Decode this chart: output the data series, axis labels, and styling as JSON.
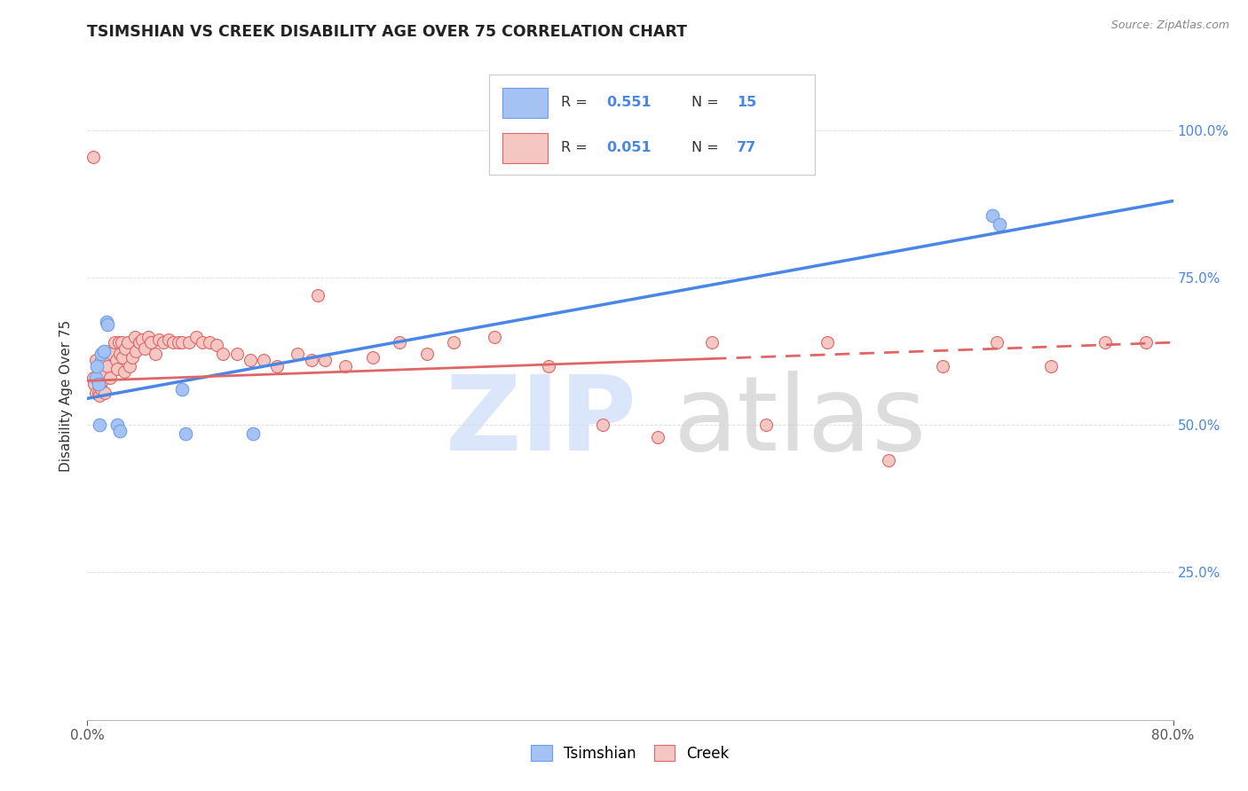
{
  "title": "TSIMSHIAN VS CREEK DISABILITY AGE OVER 75 CORRELATION CHART",
  "source": "Source: ZipAtlas.com",
  "ylabel": "Disability Age Over 75",
  "xmin": 0.0,
  "xmax": 0.8,
  "ymin": 0.0,
  "ymax": 1.1,
  "yticks": [
    0.25,
    0.5,
    0.75,
    1.0
  ],
  "ytick_labels_right": [
    "25.0%",
    "50.0%",
    "75.0%",
    "100.0%"
  ],
  "legend_label_blue": "Tsimshian",
  "legend_label_pink": "Creek",
  "blue_fill": "#a4c2f4",
  "pink_fill": "#f4c7c3",
  "blue_edge": "#6d9eeb",
  "pink_edge": "#e06666",
  "blue_line_color": "#4a86e8",
  "pink_line_color": "#e06666",
  "right_axis_color": "#4a86e8",
  "background": "#ffffff",
  "grid_color": "#e0e0e0",
  "blue_scatter_x": [
    0.006,
    0.007,
    0.008,
    0.009,
    0.01,
    0.012,
    0.014,
    0.015,
    0.022,
    0.024,
    0.07,
    0.072,
    0.122,
    0.667,
    0.672
  ],
  "blue_scatter_y": [
    0.58,
    0.6,
    0.57,
    0.5,
    0.62,
    0.625,
    0.675,
    0.67,
    0.5,
    0.49,
    0.56,
    0.485,
    0.485,
    0.855,
    0.84
  ],
  "pink_scatter_x": [
    0.004,
    0.005,
    0.006,
    0.006,
    0.007,
    0.008,
    0.009,
    0.009,
    0.01,
    0.01,
    0.011,
    0.012,
    0.013,
    0.013,
    0.015,
    0.016,
    0.017,
    0.018,
    0.02,
    0.021,
    0.022,
    0.023,
    0.024,
    0.025,
    0.026,
    0.027,
    0.028,
    0.03,
    0.031,
    0.033,
    0.035,
    0.036,
    0.038,
    0.04,
    0.042,
    0.045,
    0.047,
    0.05,
    0.053,
    0.056,
    0.06,
    0.063,
    0.067,
    0.07,
    0.075,
    0.08,
    0.085,
    0.09,
    0.095,
    0.1,
    0.11,
    0.12,
    0.13,
    0.14,
    0.155,
    0.165,
    0.175,
    0.19,
    0.21,
    0.23,
    0.25,
    0.27,
    0.3,
    0.34,
    0.38,
    0.42,
    0.46,
    0.5,
    0.545,
    0.59,
    0.63,
    0.67,
    0.71,
    0.75,
    0.78,
    0.004,
    0.17
  ],
  "pink_scatter_y": [
    0.58,
    0.57,
    0.555,
    0.61,
    0.58,
    0.555,
    0.55,
    0.6,
    0.56,
    0.61,
    0.575,
    0.59,
    0.555,
    0.61,
    0.6,
    0.625,
    0.58,
    0.62,
    0.64,
    0.61,
    0.595,
    0.64,
    0.62,
    0.64,
    0.615,
    0.59,
    0.63,
    0.64,
    0.6,
    0.615,
    0.65,
    0.625,
    0.64,
    0.645,
    0.63,
    0.65,
    0.64,
    0.62,
    0.645,
    0.64,
    0.645,
    0.64,
    0.64,
    0.64,
    0.64,
    0.65,
    0.64,
    0.64,
    0.635,
    0.62,
    0.62,
    0.61,
    0.61,
    0.6,
    0.62,
    0.61,
    0.61,
    0.6,
    0.615,
    0.64,
    0.62,
    0.64,
    0.65,
    0.6,
    0.5,
    0.48,
    0.64,
    0.5,
    0.64,
    0.44,
    0.6,
    0.64,
    0.6,
    0.64,
    0.64,
    0.955,
    0.72
  ],
  "blue_trend_x0": 0.0,
  "blue_trend_x1": 0.8,
  "blue_trend_y0": 0.545,
  "blue_trend_y1": 0.88,
  "pink_trend_solid_x0": 0.0,
  "pink_trend_solid_x1": 0.46,
  "pink_trend_dashed_x0": 0.46,
  "pink_trend_dashed_x1": 0.8,
  "pink_trend_y0": 0.575,
  "pink_trend_y1": 0.64
}
